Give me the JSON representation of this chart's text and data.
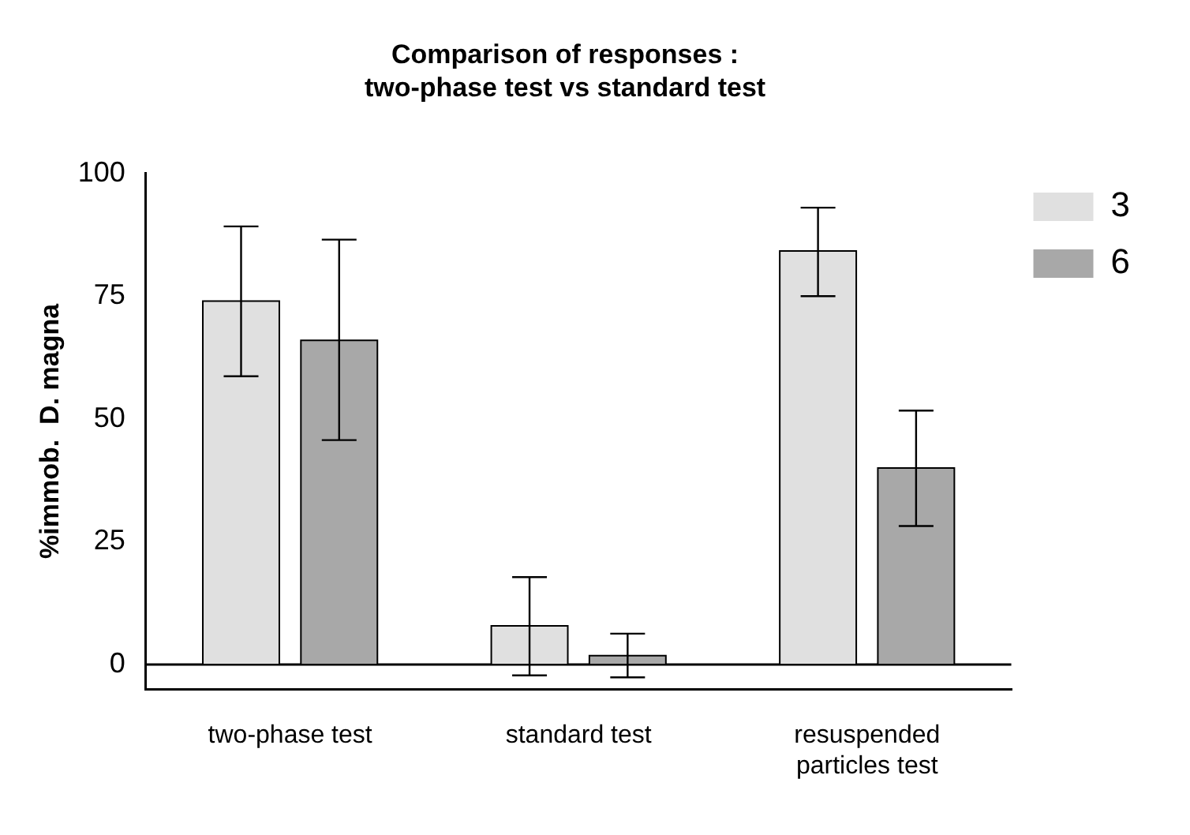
{
  "chart_data": {
    "type": "bar",
    "title": "Comparison of responses :",
    "subtitle": "two-phase test vs standard test",
    "ylabel": "%immob.  D. magna",
    "categories": [
      "two-phase test",
      "standard test",
      "resuspended particles test"
    ],
    "series": [
      {
        "name": "3",
        "color": "#e0e0e0",
        "values": [
          74,
          7.9,
          84.2
        ],
        "errors": [
          [
            58.7,
            89.2
          ],
          [
            -2.2,
            17.8
          ],
          [
            75,
            93
          ]
        ]
      },
      {
        "name": "6",
        "color": "#a8a8a8",
        "values": [
          66,
          1.8,
          40
        ],
        "errors": [
          [
            45.7,
            86.5
          ],
          [
            -2.6,
            6.3
          ],
          [
            28.2,
            51.7
          ]
        ]
      }
    ],
    "ylim": [
      -5,
      100
    ],
    "yticks": [
      0,
      25,
      50,
      75,
      100
    ],
    "ref_lines": [
      {
        "axis": "y",
        "value": 0
      }
    ],
    "grid": false,
    "legend": "top right"
  }
}
